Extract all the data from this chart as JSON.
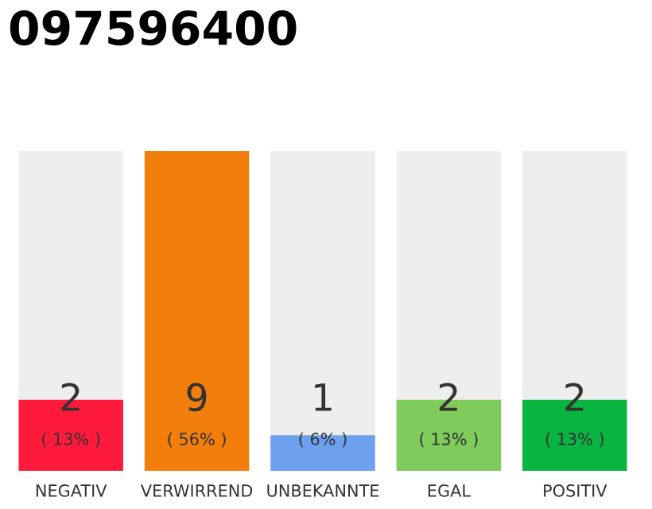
{
  "chart_data": {
    "type": "bar",
    "title": "097596400",
    "categories": [
      "NEGATIV",
      "VERWIRREND",
      "UNBEKANNTE",
      "EGAL",
      "POSITIV"
    ],
    "values": [
      2,
      9,
      1,
      2,
      2
    ],
    "colors": [
      "#ff1a3c",
      "#f27e0c",
      "#6ea0f0",
      "#7fcb5c",
      "#0ab441"
    ],
    "ylim": [
      0,
      9
    ],
    "tick_labels": "x",
    "data_labels": true,
    "grid": false,
    "annotations": [
      "( 13% )",
      "( 56% )",
      "( 6% )",
      "( 13% )",
      "( 13% )"
    ]
  }
}
